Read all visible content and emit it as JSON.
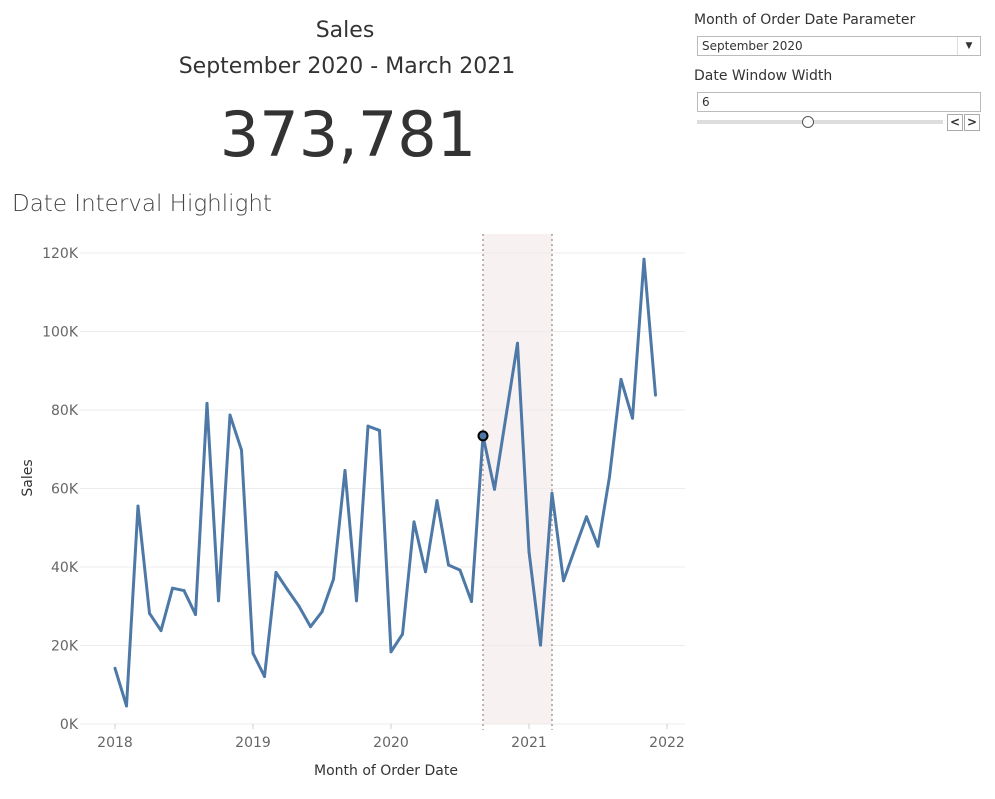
{
  "header": {
    "title": "Sales",
    "subtitle": "September 2020 - March 2021",
    "kpi_value": "373,781"
  },
  "section_title": "Date Interval Highlight",
  "controls": {
    "month_param_label": "Month of Order Date Parameter",
    "month_param_value": "September 2020",
    "window_label": "Date Window Width",
    "window_value": "6",
    "slider_fraction": 0.45,
    "prev_label": "<",
    "next_label": ">"
  },
  "chart_data": {
    "type": "line",
    "title": "Date Interval Highlight",
    "xlabel": "Month of Order Date",
    "ylabel": "Sales",
    "ylim": [
      0,
      125000
    ],
    "yticks": [
      0,
      20000,
      40000,
      60000,
      80000,
      100000,
      120000
    ],
    "ytick_labels": [
      "0K",
      "20K",
      "40K",
      "60K",
      "80K",
      "100K",
      "120K"
    ],
    "xtick_labels": [
      "2018",
      "2019",
      "2020",
      "2021",
      "2022"
    ],
    "x_start": "2018-01",
    "highlight": {
      "start_index": 32,
      "end_index": 38,
      "selected_index": 32
    },
    "colors": {
      "line": "#4e79a7",
      "band": "#f8f1f1",
      "grid": "#ececec"
    },
    "series": [
      {
        "name": "Sales",
        "values": [
          14200,
          4600,
          55500,
          28200,
          23800,
          34600,
          34000,
          27900,
          81700,
          31400,
          78700,
          69800,
          18000,
          12100,
          38600,
          34200,
          30000,
          24800,
          28600,
          36900,
          64600,
          31400,
          75900,
          74800,
          18400,
          22900,
          51500,
          38800,
          56900,
          40500,
          39200,
          31200,
          73400,
          59800,
          78400,
          97000,
          43900,
          20100,
          58800,
          36500,
          44700,
          52800,
          45300,
          63000,
          87800,
          77900,
          118400,
          83800
        ]
      }
    ]
  }
}
